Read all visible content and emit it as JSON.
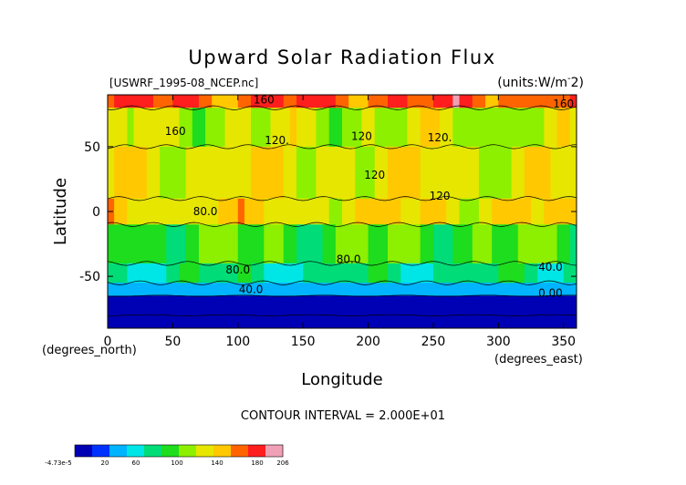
{
  "chart_data": {
    "type": "heatmap",
    "title": "Upward Solar Radiation Flux",
    "file_label": "[USWRF_1995-08_NCEP.nc]",
    "units_label": "(units:W/m^2)",
    "xlabel": "Longitude",
    "ylabel": "Latitude",
    "x_unit": "(degrees_east)",
    "y_unit": "(degrees_north)",
    "xlim": [
      0,
      360
    ],
    "ylim": [
      -90,
      90
    ],
    "x_ticks": [
      "0",
      "50",
      "100",
      "150",
      "200",
      "250",
      "300",
      "350"
    ],
    "y_ticks": [
      "50",
      "0",
      "-50"
    ],
    "x_tick_values": [
      0,
      50,
      100,
      150,
      200,
      250,
      300,
      350
    ],
    "y_tick_values": [
      50,
      0,
      -50
    ],
    "contour_interval": "CONTOUR INTERVAL = 2.000E+01",
    "contour_labels": [
      "160",
      "120.",
      "160",
      "120.",
      "120",
      "160",
      "120",
      "120",
      "80.0",
      "80.0",
      "80.0",
      "40.0",
      "40.0",
      "0.00"
    ],
    "colorbar": {
      "labels": [
        "-4.73e-5",
        "20",
        "60",
        "100",
        "140",
        "180",
        "206"
      ],
      "min": 0,
      "max": 206,
      "colors": [
        "#0000b4",
        "#0032ff",
        "#00b4ff",
        "#00e6e6",
        "#00dc78",
        "#1edc1e",
        "#8cf000",
        "#e6e600",
        "#ffc800",
        "#ff6400",
        "#ff1e1e",
        "#f0a0b4"
      ]
    },
    "latitude_bands": [
      {
        "lat_range": [
          80,
          90
        ],
        "value": 170
      },
      {
        "lat_range": [
          50,
          80
        ],
        "value": 120
      },
      {
        "lat_range": [
          10,
          50
        ],
        "value": 130
      },
      {
        "lat_range": [
          -10,
          10
        ],
        "value": 135
      },
      {
        "lat_range": [
          -40,
          -10
        ],
        "value": 100
      },
      {
        "lat_range": [
          -55,
          -40
        ],
        "value": 75
      },
      {
        "lat_range": [
          -65,
          -55
        ],
        "value": 40
      },
      {
        "lat_range": [
          -80,
          -65
        ],
        "value": 10
      },
      {
        "lat_range": [
          -90,
          -80
        ],
        "value": 0
      }
    ]
  }
}
